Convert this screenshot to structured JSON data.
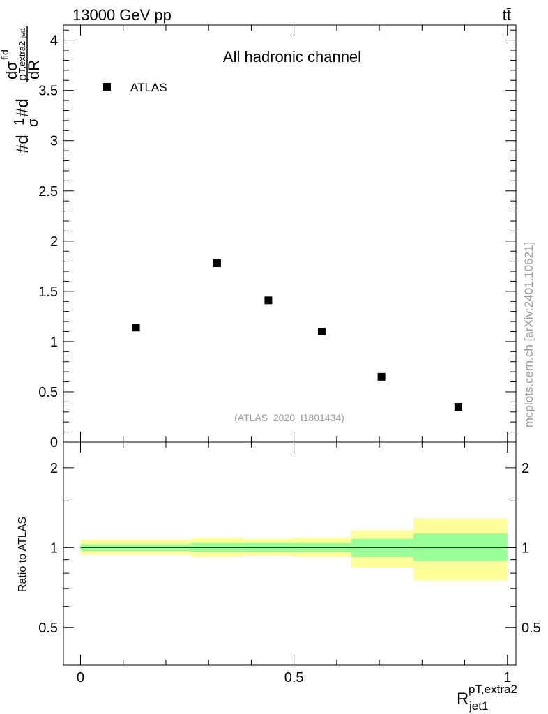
{
  "header": {
    "energy_label": "13000 GeV pp",
    "process_label": "tt̄"
  },
  "watermark": "mcplots.cern.ch [arXiv:2401.10621]",
  "chart_data": [
    {
      "type": "scatter",
      "panel": "main",
      "title": "All hadronic channel",
      "ylabel_parts": [
        "#d",
        "1",
        "σ",
        "#d",
        "dσ",
        "fid",
        "p",
        "T,extra2",
        "jet1",
        "dR"
      ],
      "analysis_id": "(ATLAS_2020_I1801434)",
      "legend": {
        "position": "top-left",
        "entries": [
          "ATLAS"
        ]
      },
      "xlim": [
        -0.04,
        1.02
      ],
      "ylim": [
        0,
        4.15
      ],
      "yticks": [
        0,
        0.5,
        1,
        1.5,
        2,
        2.5,
        3,
        3.5,
        4
      ],
      "ytick_labels": [
        "0",
        "0.5",
        "1",
        "1.5",
        "2",
        "2.5",
        "3",
        "3.5",
        "4"
      ],
      "series": [
        {
          "name": "ATLAS",
          "x": [
            0.13,
            0.32,
            0.44,
            0.565,
            0.705,
            0.885
          ],
          "y": [
            1.14,
            1.78,
            1.41,
            1.1,
            0.65,
            0.35
          ]
        }
      ]
    },
    {
      "type": "area",
      "panel": "ratio",
      "ylabel": "Ratio to ATLAS",
      "xlabel_main": "R",
      "xlabel_sup": "pT,extra2",
      "xlabel_sub": "jet1",
      "xlim": [
        -0.04,
        1.02
      ],
      "xticks": [
        0,
        0.5,
        1
      ],
      "xtick_labels": [
        "0",
        "0.5",
        "1"
      ],
      "ylim": [
        0.36,
        2.5
      ],
      "yticks": [
        0.5,
        1,
        2
      ],
      "ytick_labels": [
        "0.5",
        "1",
        "2"
      ],
      "reference_line": 1,
      "bins": [
        {
          "lo": 0.0,
          "hi": 0.26,
          "inner": [
            0.97,
            1.03
          ],
          "outer": [
            0.94,
            1.07
          ]
        },
        {
          "lo": 0.26,
          "hi": 0.38,
          "inner": [
            0.96,
            1.04
          ],
          "outer": [
            0.92,
            1.09
          ]
        },
        {
          "lo": 0.38,
          "hi": 0.5,
          "inner": [
            0.96,
            1.04
          ],
          "outer": [
            0.93,
            1.08
          ]
        },
        {
          "lo": 0.5,
          "hi": 0.635,
          "inner": [
            0.96,
            1.04
          ],
          "outer": [
            0.92,
            1.09
          ]
        },
        {
          "lo": 0.635,
          "hi": 0.78,
          "inner": [
            0.92,
            1.08
          ],
          "outer": [
            0.84,
            1.16
          ]
        },
        {
          "lo": 0.78,
          "hi": 1.0,
          "inner": [
            0.89,
            1.13
          ],
          "outer": [
            0.75,
            1.29
          ]
        }
      ],
      "colors": {
        "inner": "#99ff99",
        "outer": "#ffff99"
      }
    }
  ]
}
